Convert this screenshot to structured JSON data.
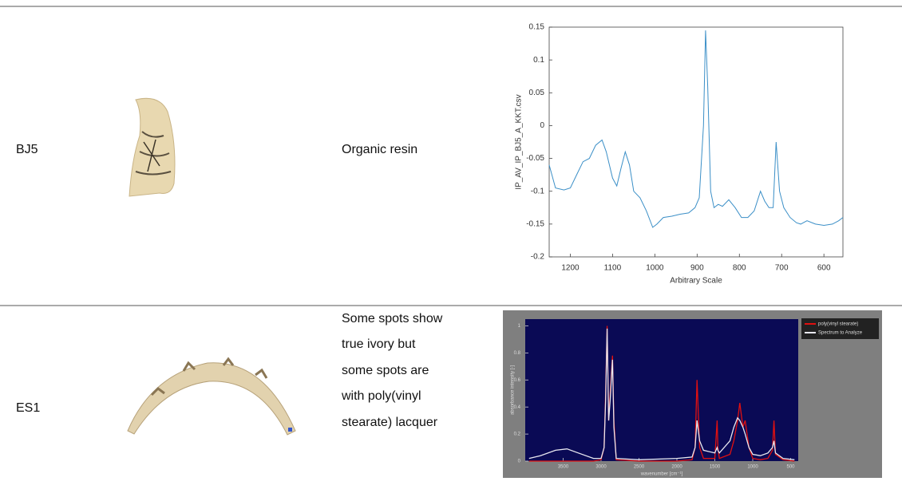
{
  "table": {
    "rows": [
      {
        "sample": "BJ5",
        "description": [
          "Organic resin"
        ],
        "chart": {
          "type": "line",
          "y_label": "IP_AV_IP_BJ5_A_KKT.csv",
          "x_label": "Arbitrary Scale",
          "xlim": [
            1250,
            555
          ],
          "xticks": [
            1200,
            1100,
            1000,
            900,
            800,
            700,
            600
          ],
          "ylim": [
            -0.2,
            0.15
          ],
          "yticks": [
            0.15,
            0.1,
            0.05,
            0,
            -0.05,
            -0.1,
            -0.15,
            -0.2
          ],
          "x": [
            1250,
            1235,
            1215,
            1200,
            1185,
            1170,
            1155,
            1140,
            1125,
            1115,
            1100,
            1090,
            1080,
            1070,
            1060,
            1050,
            1035,
            1020,
            1005,
            995,
            980,
            960,
            940,
            920,
            905,
            895,
            885,
            880,
            875,
            868,
            860,
            850,
            840,
            825,
            810,
            795,
            780,
            765,
            750,
            740,
            730,
            720,
            713,
            705,
            695,
            680,
            665,
            655,
            640,
            620,
            600,
            580,
            565,
            555
          ],
          "series": [
            {
              "color": "#3b8fc7",
              "values": [
                -0.06,
                -0.095,
                -0.098,
                -0.095,
                -0.075,
                -0.055,
                -0.05,
                -0.03,
                -0.022,
                -0.04,
                -0.08,
                -0.092,
                -0.065,
                -0.04,
                -0.06,
                -0.1,
                -0.11,
                -0.13,
                -0.155,
                -0.15,
                -0.14,
                -0.138,
                -0.135,
                -0.133,
                -0.125,
                -0.11,
                0.0,
                0.145,
                0.06,
                -0.1,
                -0.125,
                -0.12,
                -0.123,
                -0.113,
                -0.125,
                -0.14,
                -0.14,
                -0.13,
                -0.1,
                -0.115,
                -0.125,
                -0.125,
                -0.025,
                -0.1,
                -0.125,
                -0.14,
                -0.148,
                -0.15,
                -0.145,
                -0.15,
                -0.152,
                -0.15,
                -0.145,
                -0.14
              ]
            }
          ]
        }
      },
      {
        "sample": "ES1",
        "description": [
          "Some spots show",
          "true ivory but",
          "some spots are",
          "with poly(vinyl",
          "stearate) lacquer"
        ],
        "chart": {
          "type": "line",
          "y_label": "absorbance intensity [-]",
          "x_label": "wavenumber [cm⁻¹]",
          "xlim": [
            4000,
            400
          ],
          "xticks": [
            3500,
            3000,
            2500,
            2000,
            1500,
            1000,
            500
          ],
          "ylim": [
            0,
            1.05
          ],
          "yticks": [
            0,
            0.2,
            0.4,
            0.6,
            0.8,
            1
          ],
          "x": [
            3950,
            3800,
            3600,
            3450,
            3300,
            3100,
            3000,
            2960,
            2940,
            2920,
            2900,
            2880,
            2850,
            2830,
            2800,
            2500,
            2000,
            1800,
            1760,
            1735,
            1700,
            1650,
            1500,
            1470,
            1460,
            1440,
            1300,
            1250,
            1200,
            1170,
            1130,
            1100,
            1050,
            1000,
            900,
            800,
            740,
            720,
            700,
            600,
            450
          ],
          "series": [
            {
              "name": "poly(vinyl stearate)",
              "color": "#e01010",
              "values": [
                0,
                0,
                0,
                0,
                0,
                0,
                0.01,
                0.1,
                0.5,
                1.0,
                0.3,
                0.5,
                0.78,
                0.3,
                0.01,
                0,
                0,
                0.01,
                0.1,
                0.6,
                0.1,
                0.02,
                0.02,
                0.3,
                0.1,
                0.02,
                0.05,
                0.15,
                0.3,
                0.43,
                0.25,
                0.3,
                0.1,
                0.02,
                0.01,
                0.02,
                0.08,
                0.3,
                0.05,
                0.01,
                0
              ]
            },
            {
              "name": "Spectrum to Analyze",
              "color": "#e8e8f0",
              "values": [
                0.02,
                0.04,
                0.08,
                0.09,
                0.06,
                0.02,
                0.02,
                0.1,
                0.45,
                0.98,
                0.3,
                0.45,
                0.75,
                0.25,
                0.02,
                0.01,
                0.02,
                0.03,
                0.1,
                0.3,
                0.15,
                0.08,
                0.06,
                0.1,
                0.08,
                0.06,
                0.15,
                0.25,
                0.32,
                0.3,
                0.25,
                0.2,
                0.1,
                0.05,
                0.04,
                0.06,
                0.1,
                0.15,
                0.06,
                0.02,
                0.01
              ]
            }
          ]
        }
      }
    ]
  }
}
